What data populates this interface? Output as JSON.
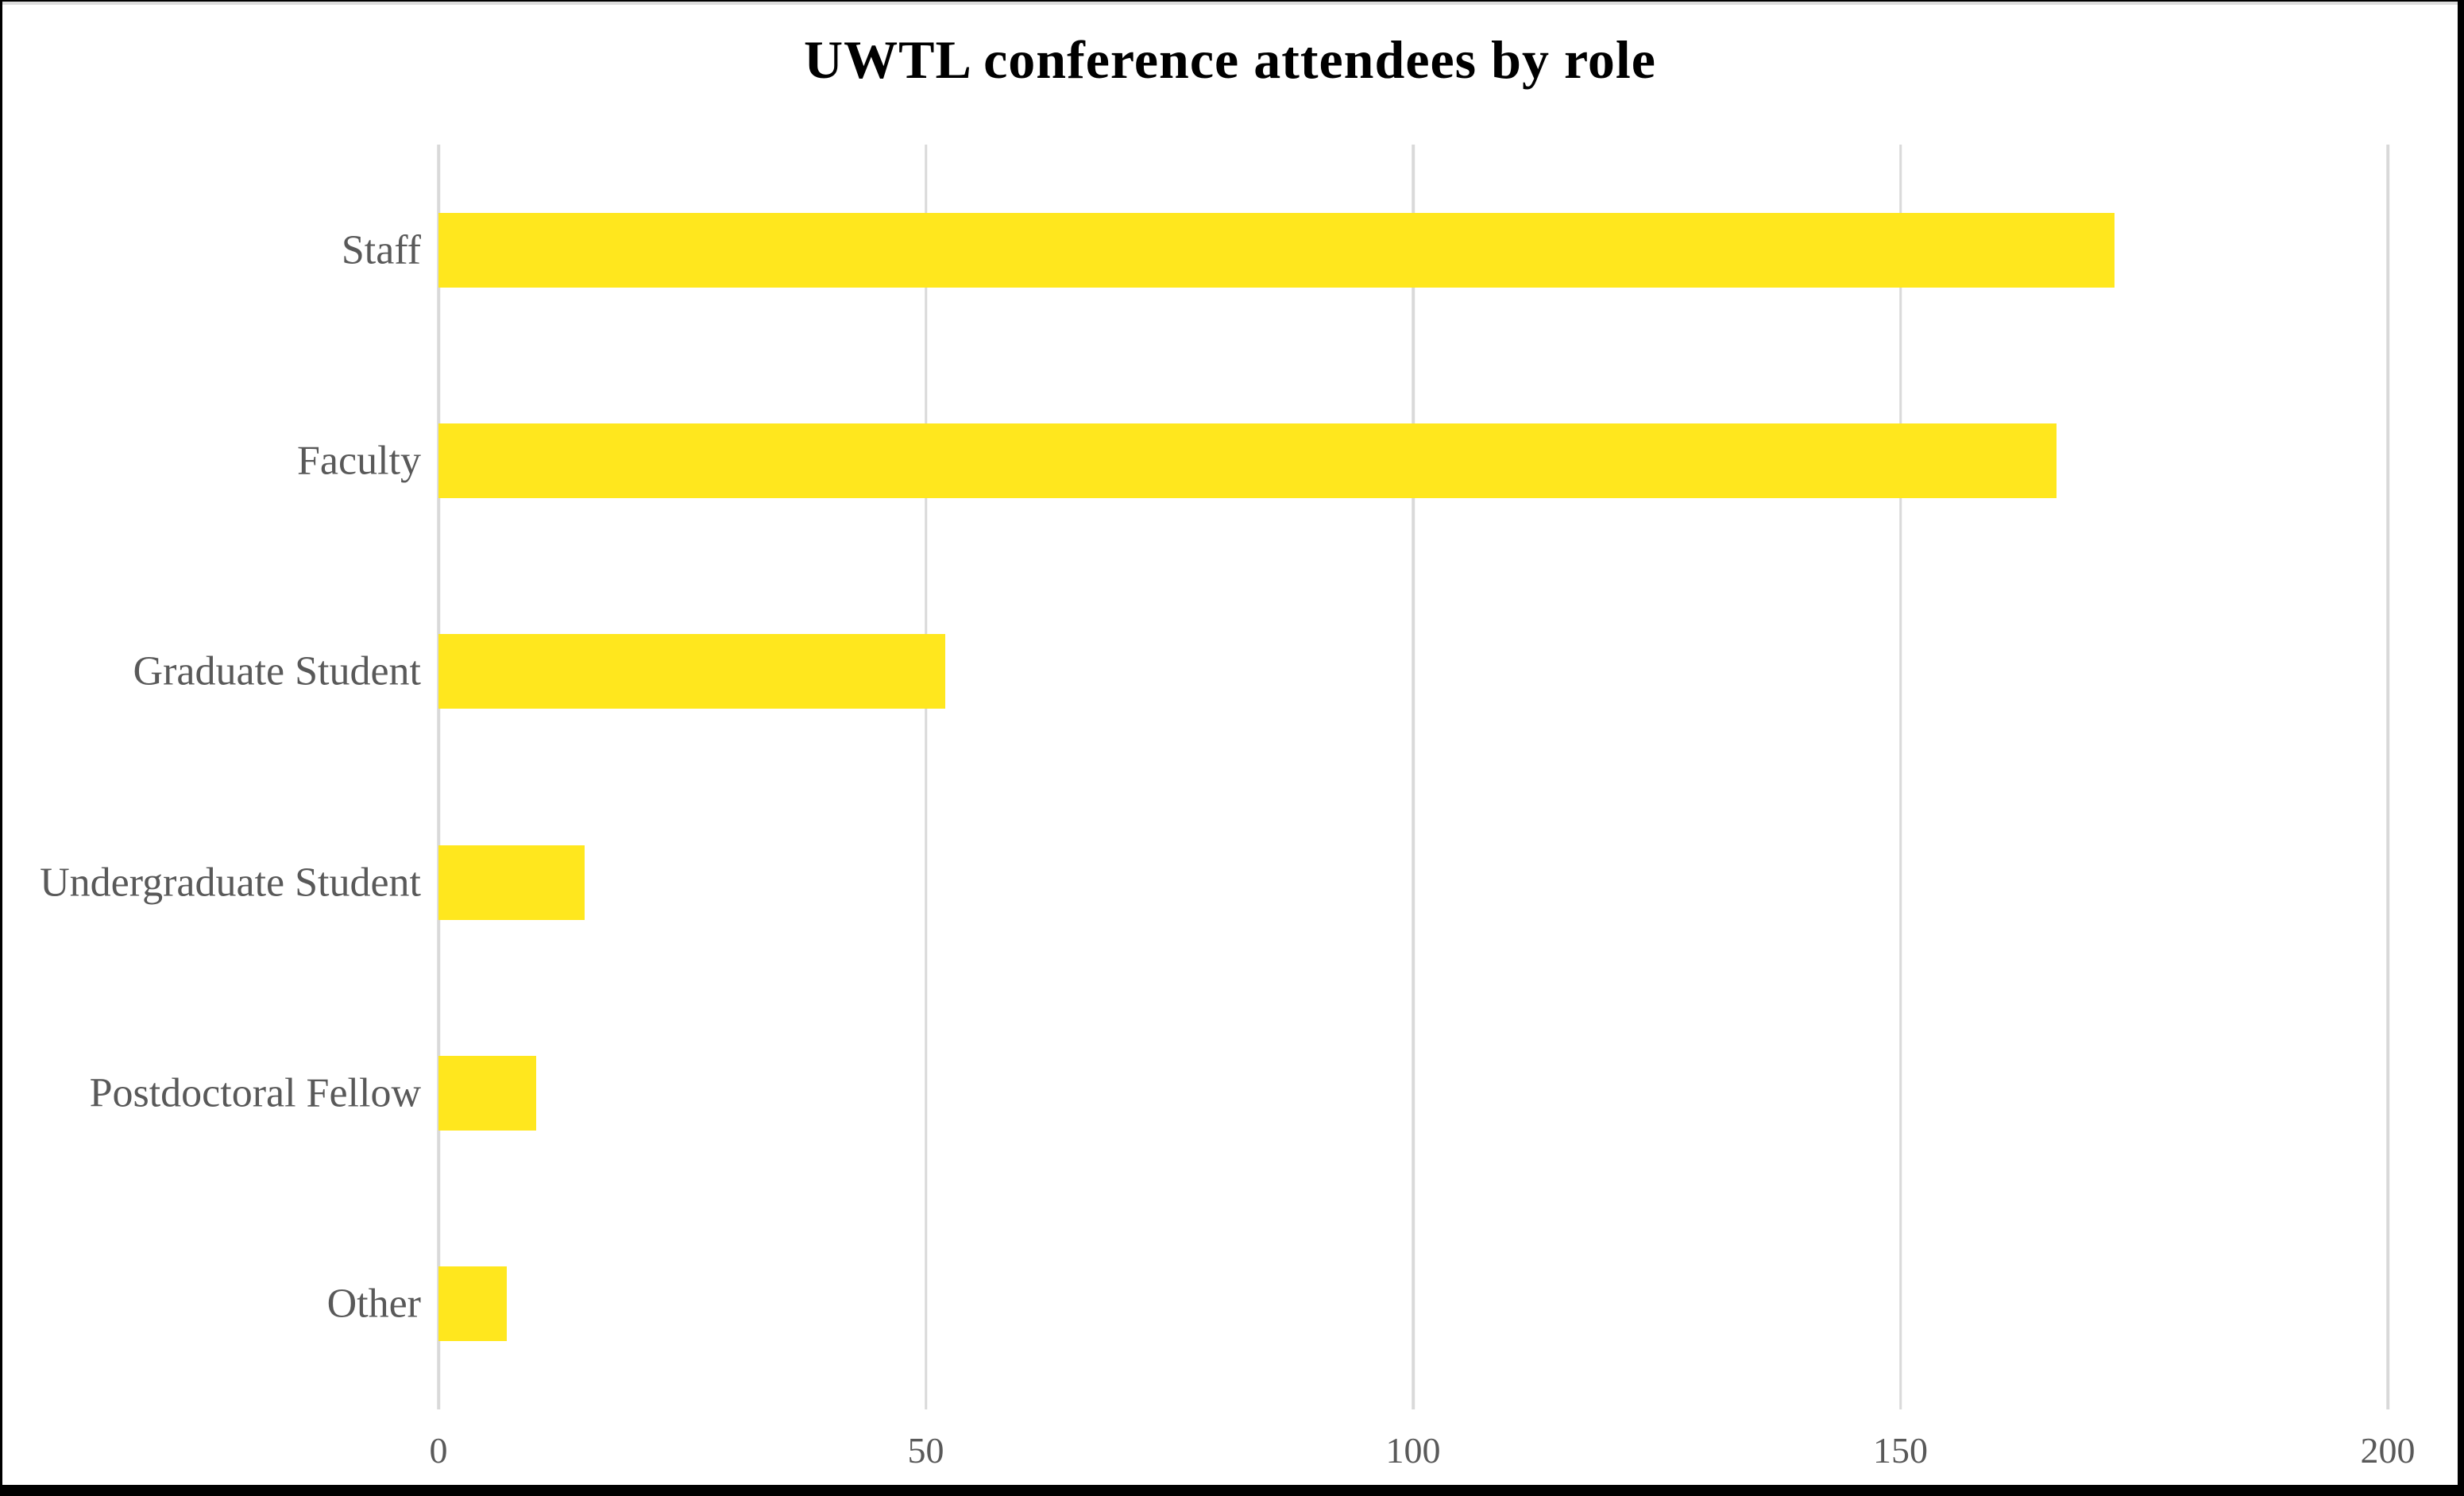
{
  "title": "UWTL conference attendees by role",
  "chart_data": {
    "type": "bar",
    "orientation": "horizontal",
    "title": "UWTL conference attendees by role",
    "categories": [
      "Staff",
      "Faculty",
      "Graduate Student",
      "Undergraduate Student",
      "Postdoctoral Fellow",
      "Other"
    ],
    "values": [
      172,
      166,
      52,
      15,
      10,
      7
    ],
    "xlabel": "",
    "ylabel": "",
    "xlim": [
      0,
      200
    ],
    "xticks": [
      0,
      50,
      100,
      150,
      200
    ],
    "grid": true,
    "legend": "none",
    "bar_color": "#ffe71e",
    "text_color": "#595959",
    "gridline_color": "#d9d9d9",
    "background_color": "#ffffff",
    "frame_color": "#000000"
  }
}
